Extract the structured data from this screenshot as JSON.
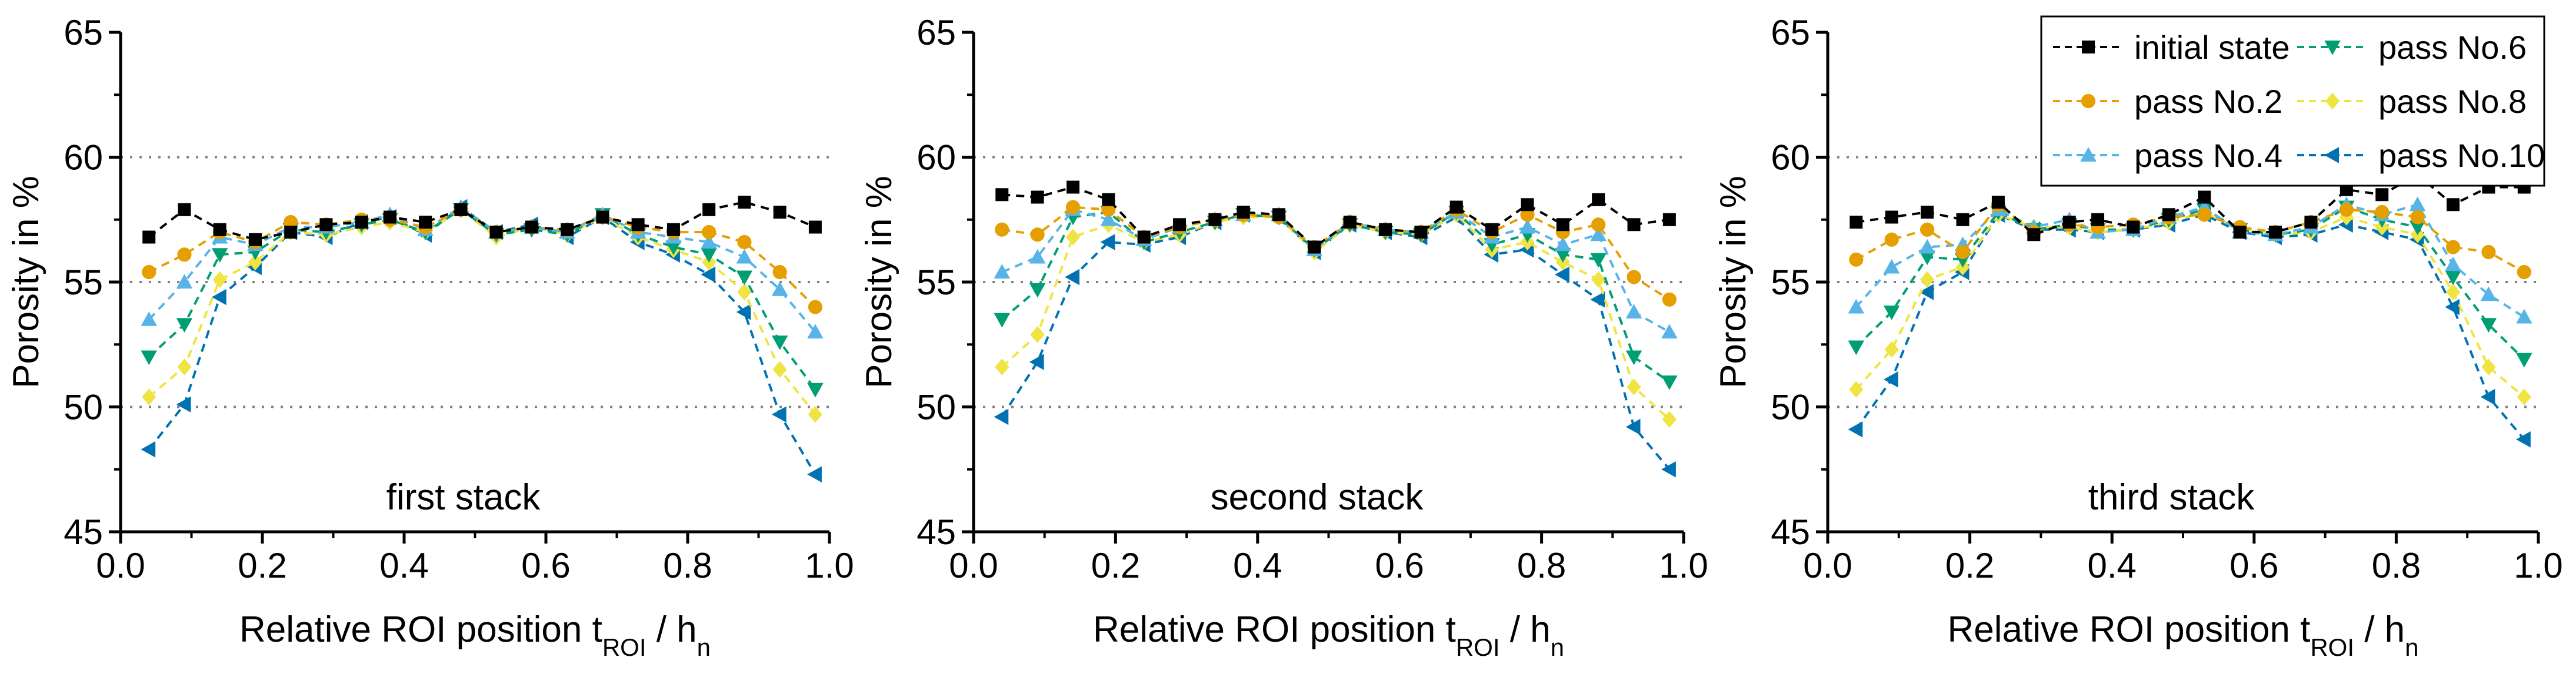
{
  "figure": {
    "legend": {
      "entries": [
        {
          "name": "initial state",
          "color": "#000000",
          "marker": "square"
        },
        {
          "name": "pass No.2",
          "color": "#e69f00",
          "marker": "circle"
        },
        {
          "name": "pass No.4",
          "color": "#56b4e9",
          "marker": "triangle-up"
        },
        {
          "name": "pass No.6",
          "color": "#009e73",
          "marker": "triangle-down"
        },
        {
          "name": "pass No.8",
          "color": "#f0e442",
          "marker": "diamond"
        },
        {
          "name": "pass No.10",
          "color": "#0072b2",
          "marker": "triangle-left"
        }
      ],
      "placement": "top-right of third panel"
    }
  },
  "chart_data": [
    {
      "type": "line",
      "label": "first stack",
      "xlabel_main": "Relative ROI position t",
      "xlabel_sub1": "ROI",
      "xlabel_mid": " / h",
      "xlabel_sub2": "n",
      "ylabel": "Porosity in %",
      "xlim": [
        0.0,
        1.0
      ],
      "ylim": [
        45,
        65
      ],
      "xticks": [
        "0.0",
        "0.2",
        "0.4",
        "0.6",
        "0.8",
        "1.0"
      ],
      "yticks": [
        "45",
        "50",
        "55",
        "60",
        "65"
      ],
      "grid": "horizontal dotted at 50, 55, 60",
      "x": [
        0.04,
        0.09,
        0.14,
        0.19,
        0.24,
        0.29,
        0.34,
        0.38,
        0.43,
        0.48,
        0.53,
        0.58,
        0.63,
        0.68,
        0.73,
        0.78,
        0.83,
        0.88,
        0.93,
        0.98
      ],
      "series": [
        {
          "name": "initial state",
          "values": [
            56.8,
            57.9,
            57.1,
            56.7,
            57.0,
            57.3,
            57.4,
            57.6,
            57.4,
            57.9,
            57.0,
            57.2,
            57.1,
            57.6,
            57.3,
            57.1,
            57.9,
            58.2,
            57.8,
            57.2
          ]
        },
        {
          "name": "pass No.2",
          "values": [
            55.4,
            56.1,
            57.0,
            56.6,
            57.4,
            57.3,
            57.5,
            57.5,
            57.2,
            57.9,
            57.0,
            57.2,
            57.1,
            57.6,
            57.2,
            57.0,
            57.0,
            56.6,
            55.4,
            54.0
          ]
        },
        {
          "name": "pass No.4",
          "values": [
            53.5,
            55.0,
            56.8,
            56.5,
            57.2,
            57.2,
            57.4,
            57.7,
            57.1,
            58.0,
            57.0,
            57.2,
            57.0,
            57.7,
            57.0,
            56.8,
            56.6,
            56.0,
            54.7,
            53.0
          ]
        },
        {
          "name": "pass No.6",
          "values": [
            52.0,
            53.3,
            56.1,
            56.2,
            57.1,
            57.0,
            57.3,
            57.5,
            57.0,
            57.9,
            56.9,
            57.1,
            56.9,
            57.7,
            56.9,
            56.4,
            56.1,
            55.2,
            52.6,
            50.7
          ]
        },
        {
          "name": "pass No.8",
          "values": [
            50.4,
            51.6,
            55.1,
            55.8,
            57.0,
            56.9,
            57.2,
            57.4,
            57.0,
            57.9,
            56.8,
            57.2,
            56.9,
            57.6,
            56.8,
            56.3,
            55.8,
            54.6,
            51.5,
            49.7
          ]
        },
        {
          "name": "pass No.10",
          "values": [
            48.3,
            50.1,
            54.4,
            55.6,
            57.0,
            56.8,
            57.4,
            57.6,
            56.9,
            58.0,
            57.0,
            57.3,
            56.8,
            57.6,
            56.6,
            56.1,
            55.3,
            53.8,
            49.7,
            47.3
          ]
        }
      ]
    },
    {
      "type": "line",
      "label": "second stack",
      "xlabel_main": "Relative ROI position t",
      "xlabel_sub1": "ROI",
      "xlabel_mid": " / h",
      "xlabel_sub2": "n",
      "ylabel": "Porosity in %",
      "xlim": [
        0.0,
        1.0
      ],
      "ylim": [
        45,
        65
      ],
      "xticks": [
        "0.0",
        "0.2",
        "0.4",
        "0.6",
        "0.8",
        "1.0"
      ],
      "yticks": [
        "45",
        "50",
        "55",
        "60",
        "65"
      ],
      "grid": "horizontal dotted at 50, 55, 60",
      "x": [
        0.04,
        0.09,
        0.14,
        0.19,
        0.24,
        0.29,
        0.34,
        0.38,
        0.43,
        0.48,
        0.53,
        0.58,
        0.63,
        0.68,
        0.73,
        0.78,
        0.83,
        0.88,
        0.93,
        0.98
      ],
      "series": [
        {
          "name": "initial state",
          "values": [
            58.5,
            58.4,
            58.8,
            58.3,
            56.8,
            57.3,
            57.5,
            57.8,
            57.7,
            56.4,
            57.4,
            57.1,
            57.0,
            58.0,
            57.1,
            58.1,
            57.3,
            58.3,
            57.3,
            57.5
          ]
        },
        {
          "name": "pass No.2",
          "values": [
            57.1,
            56.9,
            58.0,
            57.9,
            56.8,
            57.2,
            57.5,
            57.7,
            57.6,
            56.4,
            57.4,
            57.1,
            57.0,
            57.9,
            57.0,
            57.7,
            57.0,
            57.3,
            55.2,
            54.3
          ]
        },
        {
          "name": "pass No.4",
          "values": [
            55.4,
            56.0,
            57.9,
            57.5,
            56.7,
            57.2,
            57.5,
            57.7,
            57.7,
            56.3,
            57.4,
            57.1,
            57.0,
            57.8,
            56.8,
            57.2,
            56.5,
            56.9,
            53.8,
            53.0
          ]
        },
        {
          "name": "pass No.6",
          "values": [
            53.5,
            54.7,
            57.6,
            57.8,
            56.6,
            57.0,
            57.4,
            57.7,
            57.6,
            56.3,
            57.3,
            57.0,
            56.9,
            57.8,
            56.5,
            56.9,
            56.1,
            55.9,
            52.0,
            51.0
          ]
        },
        {
          "name": "pass No.8",
          "values": [
            51.6,
            52.9,
            56.8,
            57.3,
            56.6,
            56.9,
            57.4,
            57.6,
            57.6,
            56.2,
            57.3,
            57.0,
            56.9,
            57.7,
            56.3,
            56.6,
            55.8,
            55.1,
            50.8,
            49.5
          ]
        },
        {
          "name": "pass No.10",
          "values": [
            49.6,
            51.8,
            55.2,
            56.6,
            56.5,
            56.8,
            57.4,
            57.7,
            57.6,
            56.2,
            57.3,
            57.0,
            56.8,
            57.6,
            56.1,
            56.3,
            55.3,
            54.3,
            49.2,
            47.5
          ]
        }
      ]
    },
    {
      "type": "line",
      "label": "third stack",
      "xlabel_main": "Relative ROI position t",
      "xlabel_sub1": "ROI",
      "xlabel_mid": " / h",
      "xlabel_sub2": "n",
      "ylabel": "Porosity in %",
      "xlim": [
        0.0,
        1.0
      ],
      "ylim": [
        45,
        65
      ],
      "xticks": [
        "0.0",
        "0.2",
        "0.4",
        "0.6",
        "0.8",
        "1.0"
      ],
      "yticks": [
        "45",
        "50",
        "55",
        "60",
        "65"
      ],
      "grid": "horizontal dotted at 50, 55, 60",
      "x": [
        0.04,
        0.09,
        0.14,
        0.19,
        0.24,
        0.29,
        0.34,
        0.38,
        0.43,
        0.48,
        0.53,
        0.58,
        0.63,
        0.68,
        0.73,
        0.78,
        0.83,
        0.88,
        0.93,
        0.98
      ],
      "series": [
        {
          "name": "initial state",
          "values": [
            57.4,
            57.6,
            57.8,
            57.5,
            58.2,
            56.9,
            57.4,
            57.5,
            57.2,
            57.7,
            58.4,
            57.0,
            57.0,
            57.4,
            58.7,
            58.5,
            59.3,
            58.1,
            58.8,
            58.8
          ]
        },
        {
          "name": "pass No.2",
          "values": [
            55.9,
            56.7,
            57.1,
            56.2,
            58.1,
            57.0,
            57.3,
            57.2,
            57.3,
            57.6,
            57.7,
            57.2,
            57.0,
            57.4,
            57.9,
            57.8,
            57.6,
            56.4,
            56.2,
            55.4
          ]
        },
        {
          "name": "pass No.4",
          "values": [
            54.0,
            55.6,
            56.4,
            56.5,
            57.9,
            57.2,
            57.5,
            57.0,
            57.1,
            57.6,
            58.0,
            57.0,
            56.9,
            57.2,
            58.1,
            57.7,
            58.1,
            55.7,
            54.5,
            53.6
          ]
        },
        {
          "name": "pass No.6",
          "values": [
            52.4,
            53.8,
            56.0,
            55.9,
            57.8,
            57.1,
            57.3,
            57.1,
            57.1,
            57.5,
            57.9,
            57.1,
            56.9,
            57.1,
            58.0,
            57.5,
            57.2,
            55.2,
            53.3,
            51.9
          ]
        },
        {
          "name": "pass No.8",
          "values": [
            50.7,
            52.3,
            55.1,
            55.6,
            57.7,
            57.2,
            57.2,
            57.0,
            57.1,
            57.4,
            57.8,
            57.1,
            56.9,
            57.0,
            57.6,
            57.2,
            56.9,
            54.6,
            51.6,
            50.4
          ]
        },
        {
          "name": "pass No.10",
          "values": [
            49.1,
            51.1,
            54.6,
            55.4,
            57.7,
            57.1,
            57.1,
            57.0,
            57.1,
            57.3,
            57.7,
            57.0,
            56.8,
            56.9,
            57.3,
            57.0,
            56.7,
            54.0,
            50.4,
            48.7
          ]
        }
      ]
    }
  ]
}
